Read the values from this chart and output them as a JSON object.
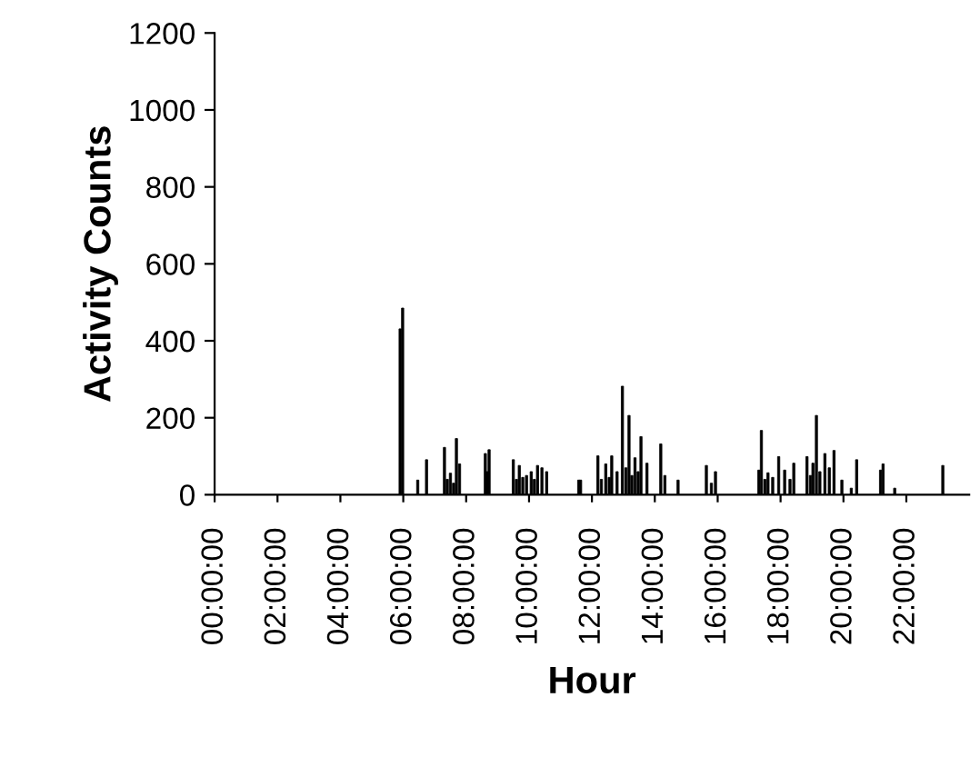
{
  "chart_data": {
    "type": "bar",
    "xlabel": "Hour",
    "ylabel": "Activity Counts",
    "x": [
      5.9,
      5.98,
      6.46,
      6.74,
      7.31,
      7.4,
      7.5,
      7.6,
      7.69,
      7.79,
      8.61,
      8.67,
      8.73,
      9.5,
      9.6,
      9.69,
      9.8,
      9.92,
      10.07,
      10.17,
      10.27,
      10.41,
      10.56,
      11.58,
      11.64,
      12.19,
      12.3,
      12.44,
      12.55,
      12.63,
      12.8,
      12.97,
      13.08,
      13.18,
      13.27,
      13.37,
      13.47,
      13.56,
      13.75,
      14.19,
      14.32,
      14.74,
      15.64,
      15.8,
      15.93,
      17.31,
      17.39,
      17.5,
      17.6,
      17.75,
      17.94,
      18.13,
      18.3,
      18.42,
      18.84,
      18.95,
      19.03,
      19.14,
      19.25,
      19.41,
      19.55,
      19.7,
      19.95,
      20.25,
      20.42,
      21.18,
      21.26,
      21.63,
      23.16
    ],
    "values": [
      431,
      485,
      38,
      91,
      123,
      40,
      56,
      30,
      146,
      80,
      107,
      60,
      117,
      91,
      40,
      76,
      45,
      50,
      60,
      40,
      76,
      70,
      60,
      38,
      38,
      101,
      40,
      80,
      45,
      101,
      60,
      282,
      70,
      206,
      50,
      96,
      60,
      151,
      82,
      132,
      50,
      38,
      76,
      30,
      60,
      64,
      167,
      40,
      57,
      45,
      99,
      64,
      40,
      82,
      99,
      50,
      82,
      206,
      60,
      107,
      70,
      115,
      38,
      17,
      91,
      64,
      80,
      17,
      76
    ],
    "color": "#000000",
    "xlim": [
      0,
      24
    ],
    "xticks": [
      {
        "value": 0,
        "label": "00:00:00"
      },
      {
        "value": 2,
        "label": "02:00:00"
      },
      {
        "value": 4,
        "label": "04:00:00"
      },
      {
        "value": 6,
        "label": "06:00:00"
      },
      {
        "value": 8,
        "label": "08:00:00"
      },
      {
        "value": 10,
        "label": "10:00:00"
      },
      {
        "value": 12,
        "label": "12:00:00"
      },
      {
        "value": 14,
        "label": "14:00:00"
      },
      {
        "value": 16,
        "label": "16:00:00"
      },
      {
        "value": 18,
        "label": "18:00:00"
      },
      {
        "value": 20,
        "label": "20:00:00"
      },
      {
        "value": 22,
        "label": "22:00:00"
      }
    ],
    "ylim": [
      0,
      1200
    ],
    "yticks": [
      0,
      200,
      400,
      600,
      800,
      1000,
      1200
    ],
    "grid": false
  }
}
